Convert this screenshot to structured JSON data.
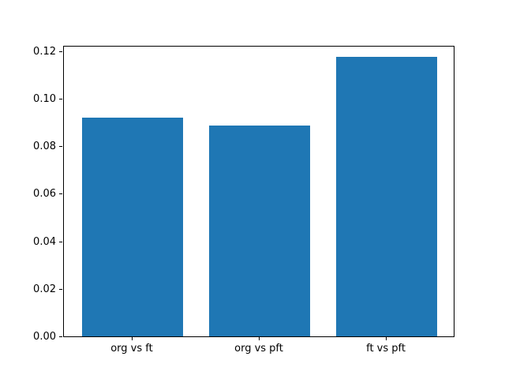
{
  "figure": {
    "background": "#ffffff",
    "spine_color": "#000000",
    "tick_color": "#000000"
  },
  "chart_data": {
    "type": "bar",
    "categories": [
      "org vs ft",
      "org vs pft",
      "ft vs pft"
    ],
    "values": [
      0.092,
      0.0885,
      0.1175
    ],
    "title": "",
    "xlabel": "",
    "ylabel": "",
    "ylim": [
      0,
      0.1225
    ],
    "yticks": [
      0,
      0.02,
      0.04,
      0.06,
      0.08,
      0.1,
      0.12
    ],
    "ytick_labels": [
      "0.00",
      "0.02",
      "0.04",
      "0.06",
      "0.08",
      "0.10",
      "0.12"
    ],
    "xlim": [
      -0.54,
      2.54
    ],
    "bar_width": 0.8,
    "bar_color": "#1f77b4",
    "grid": false,
    "legend_position": "none"
  }
}
